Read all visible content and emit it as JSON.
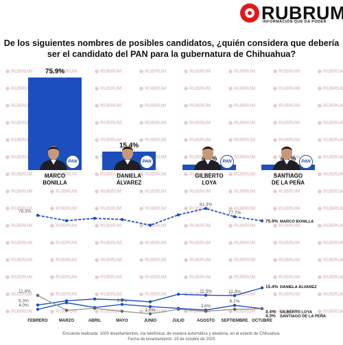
{
  "brand": {
    "name": "RUBRUM",
    "tagline": "INFORMACIÓN QUE DA PODER",
    "watermark": "RUBRUM"
  },
  "question": "De los siguientes nombres de posibles candidatos, ¿quién considera que debería ser el candidato del PAN para la gubernatura de Chihuahua?",
  "party_badge": "PAN",
  "colors": {
    "bar": "#1c4fbd",
    "line": "#1c4fbd",
    "grey_line": "#9a9a9a",
    "brand_red": "#e01919"
  },
  "chart_data": [
    {
      "type": "bar",
      "categories": [
        "MARCO BONILLA",
        "DANIELA ÁLVAREZ",
        "GILBERTO LOYA",
        "SANTIAGO DE LA PEÑA"
      ],
      "category_lines": [
        [
          "MARCO",
          "BONILLA"
        ],
        [
          "DANIELA",
          "ÁLVAREZ"
        ],
        [
          "GILBERTO",
          "LOYA"
        ],
        [
          "SANTIAGO",
          "DE LA PEÑA"
        ]
      ],
      "values": [
        75.9,
        15.4,
        4.4,
        4.3
      ],
      "value_labels": [
        "75.9%",
        "15.4%",
        "4.4%",
        "4.3%"
      ],
      "ylim": [
        0,
        76
      ]
    },
    {
      "type": "line",
      "x": [
        "FEBRERO",
        "MARZO",
        "ABRIL",
        "MAYO",
        "JUNIO",
        "JULIO",
        "AGOSTO",
        "SEPTIEMBRE",
        "OCTUBRE"
      ],
      "series": [
        {
          "name": "MARCO BONILLA",
          "values": [
            78.3,
            76.0,
            77.0,
            76.5,
            74.0,
            78.5,
            81.3,
            77.7,
            75.9
          ],
          "end_label": "75.9%",
          "labels": [
            {
              "i": 0,
              "text": "78.3%"
            },
            {
              "i": 6,
              "text": "81.3%"
            },
            {
              "i": 7,
              "text": "77.7%"
            }
          ]
        },
        {
          "name": "DANIELA ÁLVAREZ",
          "values": [
            6.3,
            8.5,
            9.5,
            9.0,
            8.0,
            12.0,
            11.5,
            11.3,
            15.4
          ],
          "end_label": "15.4%",
          "labels": [
            {
              "i": 0,
              "text": "6.3%"
            },
            {
              "i": 6,
              "text": "11.5%"
            },
            {
              "i": 7,
              "text": "11.3%"
            }
          ]
        },
        {
          "name": "GILBERTO LOYA",
          "values": [
            4.0,
            7.5,
            5.0,
            6.6,
            5.5,
            4.5,
            3.6,
            6.1,
            4.4
          ],
          "end_label": "4.4%",
          "labels": [
            {
              "i": 0,
              "text": "4.0%"
            },
            {
              "i": 3,
              "text": "6.6%"
            },
            {
              "i": 6,
              "text": "3.6%"
            },
            {
              "i": 7,
              "text": "6.1%"
            }
          ]
        },
        {
          "name": "SANTIAGO DE LA PEÑA",
          "values": [
            11.4,
            3.5,
            4.5,
            3.0,
            1.6,
            4.0,
            3.0,
            4.0,
            4.3
          ],
          "end_label": "4.3%",
          "labels": [
            {
              "i": 0,
              "text": "11.4%"
            },
            {
              "i": 4,
              "text": "1.6%"
            }
          ]
        }
      ]
    }
  ],
  "footer": {
    "line1": "Encuesta realizada: 1000 levantamientos, vía telefónica, de manera automática y aleatoria, en el estado de Chihuahua.",
    "line2": "Fecha de levantamiento: 19 de octubre de 2025"
  }
}
